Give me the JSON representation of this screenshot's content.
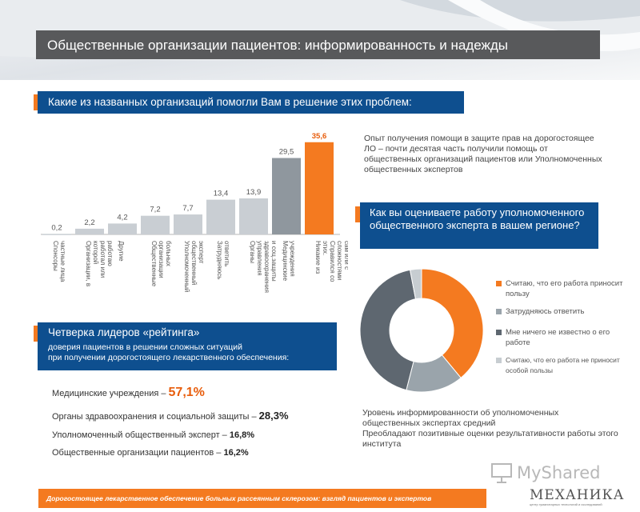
{
  "title": "Общественные организации пациентов: информированность и надежды",
  "question1": "Какие из названных организаций помогли Вам в решение этих проблем:",
  "chart_data": [
    {
      "type": "bar",
      "title": "Какие из названных организаций помогли Вам в решение этих проблем:",
      "categories": [
        "Спонсоры частные лица",
        "Организации, в которой работал или работаю",
        "Другие",
        "Общественные организации больных",
        "Уполномоченный общественный эксперт",
        "Затрудняюсь ответить",
        "Органы управления здравоохранения и соц.защиты",
        "Медицинские учреждения",
        "Никакие из этих. Справился со сложностями сам или с помощью близких"
      ],
      "values": [
        0.2,
        2.2,
        4.2,
        7.2,
        7.7,
        13.4,
        13.9,
        29.5,
        35.6
      ],
      "value_labels": [
        "0,2",
        "2,2",
        "4,2",
        "7,2",
        "7,7",
        "13,4",
        "13,9",
        "29,5",
        "35,6"
      ],
      "highlight_index": 8,
      "ylim": [
        0,
        38
      ]
    },
    {
      "type": "pie",
      "title": "Как вы оцениваете работу уполномоченного общественного эксперта в вашем регионе?",
      "labels": [
        "Считаю, что его работа приносит пользу",
        "Затрудняюсь ответить",
        "Мне ничего не известно о его работе",
        "Считаю, что его работа не приносит особой пользы"
      ],
      "values": [
        39,
        15,
        43,
        3
      ]
    }
  ],
  "note1": "Опыт получения помощи в защите прав на дорогостоящее ЛО – почти десятая часть получили помощь от общественных организаций пациентов или Уполномоченных общественных экспертов",
  "question2": "Как вы оцениваете работу уполномоченного общественного эксперта в вашем регионе?",
  "legend": [
    "Считаю, что его работа приносит пользу",
    "Затрудняюсь ответить",
    "Мне ничего не известно о его работе",
    "Считаю, что его работа не приносит особой пользы"
  ],
  "colors": {
    "orange": "#f47a20",
    "navy": "#0e4f8f",
    "darkgray": "#5e6770",
    "midgray": "#9aa4ab",
    "lightgray": "#c7cdd1",
    "bar": "#c9ced3",
    "bar_hl": "#f47a20"
  },
  "leaders": {
    "title": "Четверка лидеров «рейтинга»",
    "subtitle_1": "доверия пациентов в решении сложных ситуаций",
    "subtitle_2": "при получении дорогостоящего лекарственного обеспечения:",
    "items": [
      {
        "label": "Медицинские учреждения –",
        "value": "57,1%"
      },
      {
        "label": "Органы здравоохранения и социальной защиты –",
        "value": "28,3%"
      },
      {
        "label": "Уполномоченный общественный эксперт –",
        "value": "16,8%"
      },
      {
        "label": "Общественные организации пациентов –",
        "value": "16,2%"
      }
    ]
  },
  "note2_line1": "Уровень информированности об уполномоченных общественных экспертах средний",
  "note2_line2": "Преобладают позитивные оценки результативности работы этого института",
  "footer": "Дорогостоящее лекарственное обеспечение больных рассеянным склерозом: взгляд пациентов и экспертов",
  "watermark": "MyShared",
  "logo": {
    "name": "МЕХАНИКА",
    "sub": "центр гуманитарных технологий и исследований"
  }
}
